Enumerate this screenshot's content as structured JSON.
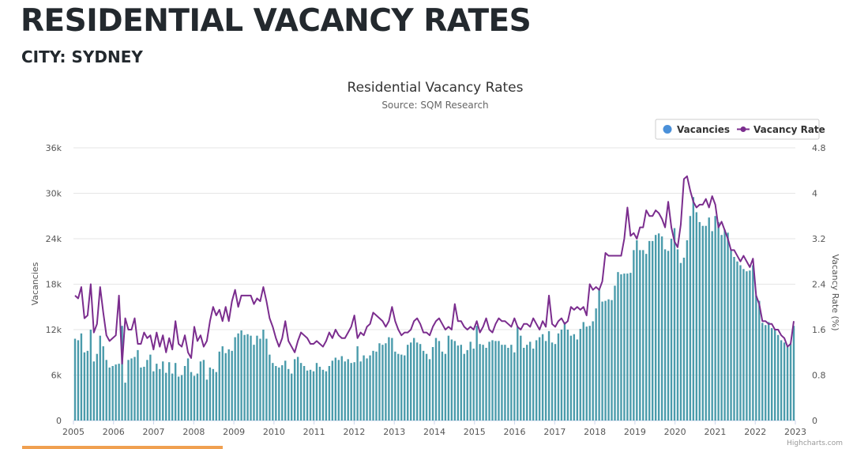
{
  "header": {
    "title": "RESIDENTIAL VACANCY RATES",
    "subtitle": "CITY: SYDNEY"
  },
  "colors": {
    "bars": "#4a9bab",
    "line": "#7b2d8e",
    "legend_vacancies": "#4a90d9",
    "grid": "#e6e6e6",
    "text": "#23292e"
  },
  "chart_data": {
    "type": "bar",
    "title": "Residential Vacancy Rates",
    "subtitle": "Source: SQM Research",
    "x_tick_labels": [
      "2005",
      "2006",
      "2007",
      "2008",
      "2009",
      "2010",
      "2011",
      "2012",
      "2013",
      "2014",
      "2015",
      "2016",
      "2017",
      "2018",
      "2019",
      "2020",
      "2021",
      "2022",
      "2023"
    ],
    "x_range": [
      2005,
      2023
    ],
    "ylabel_left": "Vacancies",
    "ylabel_right": "Vacancy Rate (%)",
    "y_left_ticks": [
      "0",
      "6k",
      "12k",
      "18k",
      "24k",
      "30k",
      "36k"
    ],
    "y_left_range": [
      0,
      36000
    ],
    "y_right_ticks": [
      "0",
      "0.8",
      "1.6",
      "2.4",
      "3.2",
      "4",
      "4.8"
    ],
    "y_right_range": [
      0,
      4.8
    ],
    "legend": [
      "Vacancies",
      "Vacancy Rate"
    ],
    "credits": "Highcharts.com",
    "series": [
      {
        "name": "Vacancies",
        "type": "column",
        "axis": "left",
        "values": [
          10800,
          10600,
          11500,
          9000,
          9200,
          12000,
          7800,
          8800,
          11200,
          9800,
          8000,
          7000,
          7200,
          7400,
          7500,
          12500,
          5000,
          8000,
          8200,
          8400,
          9300,
          7000,
          7100,
          8000,
          8700,
          6500,
          7500,
          6800,
          7800,
          6300,
          7700,
          6200,
          7600,
          5800,
          6000,
          7200,
          8200,
          6400,
          5900,
          6200,
          7800,
          8000,
          5400,
          7000,
          6800,
          6400,
          9100,
          9800,
          8900,
          9400,
          9200,
          11000,
          11500,
          11900,
          11300,
          11400,
          11200,
          10000,
          11200,
          10800,
          12000,
          10800,
          8700,
          7600,
          7200,
          7000,
          7300,
          7900,
          6800,
          6200,
          8100,
          8400,
          7600,
          7200,
          6600,
          6700,
          6500,
          7600,
          7100,
          6700,
          6500,
          7200,
          7900,
          8300,
          8000,
          8500,
          7800,
          8100,
          7600,
          7700,
          9800,
          7800,
          8600,
          8200,
          8600,
          9200,
          9100,
          10200,
          10000,
          10200,
          11000,
          10900,
          9100,
          8800,
          8700,
          8600,
          10000,
          10300,
          10900,
          10300,
          10100,
          9200,
          8800,
          8100,
          9700,
          10900,
          10500,
          9100,
          8800,
          11200,
          10700,
          10500,
          9900,
          10000,
          8800,
          9300,
          10400,
          9500,
          12500,
          10100,
          10000,
          9600,
          10400,
          10600,
          10500,
          10500,
          10000,
          10000,
          9600,
          10000,
          9000,
          12400,
          11200,
          9600,
          10000,
          10400,
          9500,
          10600,
          11000,
          11400,
          10500,
          11800,
          10300,
          10100,
          11500,
          12000,
          13000,
          12000,
          11200,
          11400,
          10700,
          12100,
          13000,
          12400,
          12500,
          13100,
          14800,
          17400,
          15700,
          15800,
          16000,
          15900,
          17800,
          19600,
          19300,
          19400,
          19400,
          19500,
          22500,
          23800,
          22500,
          22500,
          22000,
          23700,
          23700,
          24500,
          24700,
          24300,
          22600,
          22400,
          24000,
          25400,
          22600,
          20800,
          21500,
          23800,
          27000,
          29500,
          27500,
          26200,
          25700,
          25700,
          26800,
          25000,
          27000,
          26200,
          24500,
          25200,
          24800,
          22600,
          21600,
          21000,
          20500,
          20000,
          19700,
          19800,
          20500,
          16500,
          15800,
          12900,
          12600,
          13000,
          12200,
          12000,
          11300,
          10600,
          10300,
          9800,
          10100,
          12500
        ]
      },
      {
        "name": "Vacancy Rate",
        "type": "line",
        "axis": "right",
        "values": [
          2.2,
          2.15,
          2.35,
          1.8,
          1.85,
          2.4,
          1.55,
          1.7,
          2.35,
          1.9,
          1.5,
          1.4,
          1.45,
          1.5,
          2.2,
          1.0,
          1.8,
          1.6,
          1.6,
          1.8,
          1.35,
          1.35,
          1.55,
          1.45,
          1.5,
          1.25,
          1.55,
          1.3,
          1.5,
          1.2,
          1.45,
          1.25,
          1.75,
          1.35,
          1.3,
          1.5,
          1.2,
          1.1,
          1.65,
          1.4,
          1.5,
          1.3,
          1.4,
          1.75,
          2.0,
          1.85,
          1.95,
          1.75,
          2.0,
          1.75,
          2.1,
          2.3,
          2.0,
          2.2,
          2.2,
          2.2,
          2.2,
          2.05,
          2.15,
          2.1,
          2.35,
          2.1,
          1.8,
          1.65,
          1.45,
          1.3,
          1.45,
          1.75,
          1.4,
          1.3,
          1.2,
          1.4,
          1.55,
          1.5,
          1.45,
          1.35,
          1.35,
          1.4,
          1.35,
          1.3,
          1.4,
          1.55,
          1.45,
          1.6,
          1.5,
          1.45,
          1.45,
          1.55,
          1.65,
          1.85,
          1.45,
          1.55,
          1.5,
          1.65,
          1.7,
          1.9,
          1.85,
          1.8,
          1.75,
          1.65,
          1.75,
          2.0,
          1.75,
          1.6,
          1.5,
          1.55,
          1.55,
          1.6,
          1.75,
          1.8,
          1.7,
          1.55,
          1.55,
          1.5,
          1.65,
          1.75,
          1.8,
          1.7,
          1.6,
          1.65,
          1.6,
          2.05,
          1.75,
          1.75,
          1.65,
          1.6,
          1.65,
          1.6,
          1.75,
          1.55,
          1.65,
          1.8,
          1.6,
          1.55,
          1.7,
          1.8,
          1.75,
          1.75,
          1.7,
          1.65,
          1.8,
          1.65,
          1.6,
          1.7,
          1.7,
          1.65,
          1.8,
          1.7,
          1.6,
          1.75,
          1.65,
          2.2,
          1.7,
          1.65,
          1.75,
          1.8,
          1.7,
          1.75,
          2.0,
          1.95,
          2.0,
          1.95,
          2.0,
          1.85,
          2.4,
          2.3,
          2.35,
          2.3,
          2.45,
          2.95,
          2.9,
          2.9,
          2.9,
          2.9,
          2.9,
          3.2,
          3.75,
          3.25,
          3.3,
          3.2,
          3.4,
          3.4,
          3.7,
          3.6,
          3.6,
          3.7,
          3.65,
          3.55,
          3.4,
          3.85,
          3.4,
          3.15,
          3.05,
          3.45,
          4.25,
          4.3,
          4.05,
          3.85,
          3.75,
          3.8,
          3.8,
          3.9,
          3.75,
          3.95,
          3.8,
          3.4,
          3.5,
          3.35,
          3.2,
          3.0,
          3.0,
          2.9,
          2.8,
          2.9,
          2.8,
          2.7,
          2.85,
          2.2,
          2.05,
          1.75,
          1.75,
          1.7,
          1.7,
          1.6,
          1.6,
          1.5,
          1.45,
          1.3,
          1.35,
          1.75
        ]
      }
    ]
  }
}
